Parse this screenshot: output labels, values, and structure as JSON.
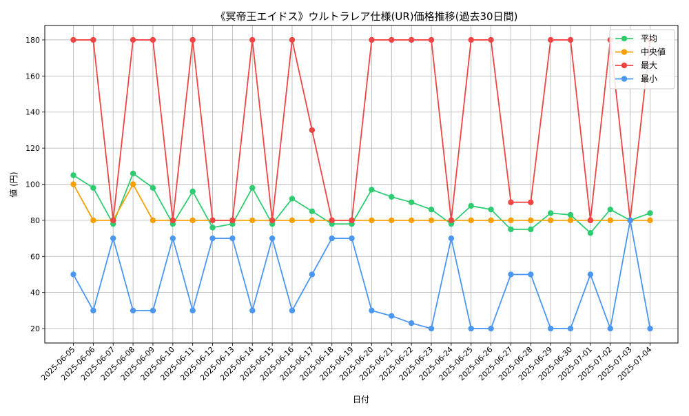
{
  "chart_data": {
    "type": "line",
    "title": "《冥帝王エイドス》ウルトラレア仕様(UR)価格推移(過去30日間)",
    "xlabel": "日付",
    "ylabel": "値 (円)",
    "ylim": [
      12,
      188
    ],
    "yticks": [
      20,
      40,
      60,
      80,
      100,
      120,
      140,
      160,
      180
    ],
    "grid": true,
    "legend_position": "top-right",
    "categories": [
      "2025-06-05",
      "2025-06-06",
      "2025-06-07",
      "2025-06-08",
      "2025-06-09",
      "2025-06-10",
      "2025-06-11",
      "2025-06-12",
      "2025-06-13",
      "2025-06-14",
      "2025-06-15",
      "2025-06-16",
      "2025-06-17",
      "2025-06-18",
      "2025-06-19",
      "2025-06-20",
      "2025-06-21",
      "2025-06-22",
      "2025-06-23",
      "2025-06-24",
      "2025-06-25",
      "2025-06-26",
      "2025-06-27",
      "2025-06-28",
      "2025-06-29",
      "2025-06-30",
      "2025-07-01",
      "2025-07-02",
      "2025-07-03",
      "2025-07-04"
    ],
    "series": [
      {
        "name": "平均",
        "color": "#2ecc71",
        "values": [
          105,
          98,
          78,
          106,
          98,
          78,
          96,
          76,
          78,
          98,
          78,
          92,
          85,
          78,
          78,
          97,
          93,
          90,
          86,
          78,
          88,
          86,
          75,
          75,
          84,
          83,
          73,
          86,
          80,
          84
        ]
      },
      {
        "name": "中央値",
        "color": "#f5a000",
        "values": [
          100,
          80,
          80,
          100,
          80,
          80,
          80,
          80,
          80,
          80,
          80,
          80,
          80,
          80,
          80,
          80,
          80,
          80,
          80,
          80,
          80,
          80,
          80,
          80,
          80,
          80,
          80,
          80,
          80,
          80
        ]
      },
      {
        "name": "最大",
        "color": "#ef4444",
        "values": [
          180,
          180,
          80,
          180,
          180,
          80,
          180,
          80,
          80,
          180,
          80,
          180,
          130,
          80,
          80,
          180,
          180,
          180,
          180,
          80,
          180,
          180,
          90,
          90,
          180,
          180,
          80,
          180,
          80,
          180
        ]
      },
      {
        "name": "最小",
        "color": "#4a96f0",
        "values": [
          50,
          30,
          70,
          30,
          30,
          70,
          30,
          70,
          70,
          30,
          70,
          30,
          50,
          70,
          70,
          30,
          27,
          23,
          20,
          70,
          20,
          20,
          50,
          50,
          20,
          20,
          50,
          20,
          80,
          20
        ]
      }
    ]
  }
}
